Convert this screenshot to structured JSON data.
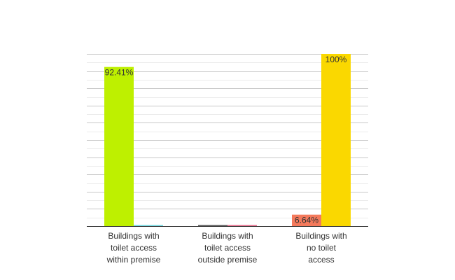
{
  "chart_data": {
    "type": "bar",
    "title": "",
    "xlabel": "",
    "ylabel": "",
    "ylim": [
      0,
      100
    ],
    "grid": true,
    "legend": "none",
    "categories": [
      [
        "Buildings with",
        "toilet access",
        "within premise"
      ],
      [
        "Buildings with",
        "toilet access",
        "outside premise"
      ],
      [
        "Buildings with",
        "no toilet",
        "access"
      ]
    ],
    "groups": [
      [
        {
          "value": 92.41,
          "label": "92.41%",
          "color": "#bef000"
        },
        {
          "value": 0.3,
          "label": "",
          "color": "#6fd8e0"
        }
      ],
      [
        {
          "value": 0.6,
          "label": "",
          "color": "#555555"
        },
        {
          "value": 0.4,
          "label": "",
          "color": "#e86a8a"
        }
      ],
      [
        {
          "value": 6.64,
          "label": "6.64%",
          "color": "#f47a5c"
        },
        {
          "value": 100,
          "label": "100%",
          "color": "#fad800"
        }
      ]
    ]
  }
}
